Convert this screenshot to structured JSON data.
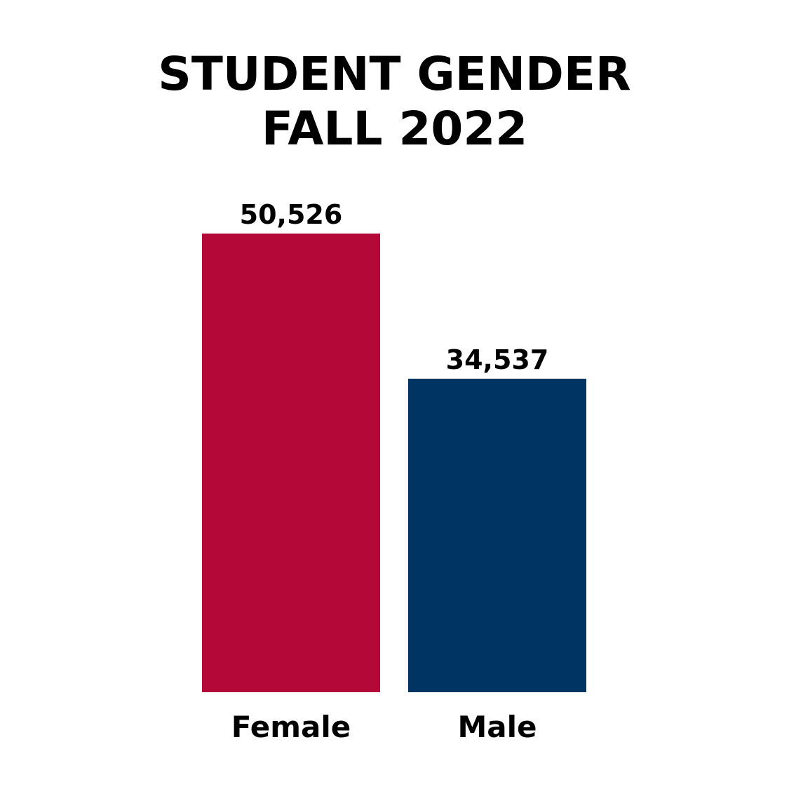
{
  "chart_data": {
    "type": "bar",
    "title_lines": [
      "STUDENT GENDER",
      "FALL 2022"
    ],
    "categories": [
      "Female",
      "Male"
    ],
    "values": [
      50526,
      34537
    ],
    "value_labels": [
      "50,526",
      "34,537"
    ],
    "colors": [
      "#B30838",
      "#003462"
    ],
    "xlabel": "",
    "ylabel": "",
    "ylim": [
      0,
      50526
    ],
    "grid": false,
    "legend": "none"
  }
}
